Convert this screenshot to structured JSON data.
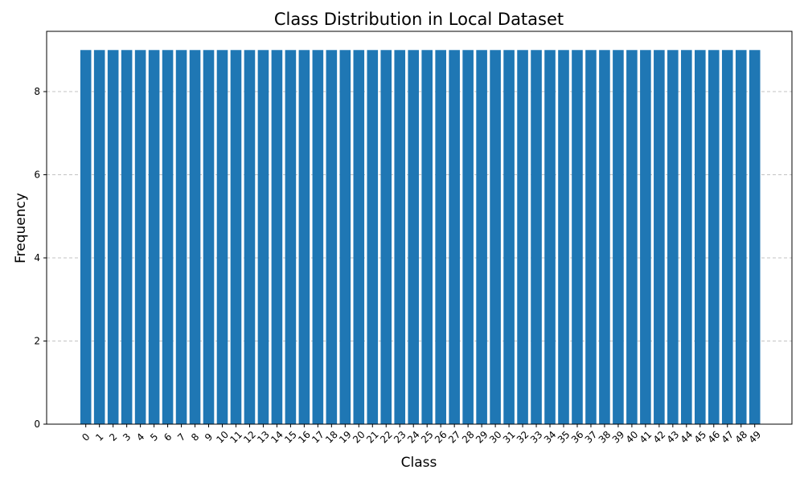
{
  "chart_data": {
    "type": "bar",
    "title": "Class Distribution in Local Dataset",
    "xlabel": "Class",
    "ylabel": "Frequency",
    "categories": [
      "0",
      "1",
      "2",
      "3",
      "4",
      "5",
      "6",
      "7",
      "8",
      "9",
      "10",
      "11",
      "12",
      "13",
      "14",
      "15",
      "16",
      "17",
      "18",
      "19",
      "20",
      "21",
      "22",
      "23",
      "24",
      "25",
      "26",
      "27",
      "28",
      "29",
      "30",
      "31",
      "32",
      "33",
      "34",
      "35",
      "36",
      "37",
      "38",
      "39",
      "40",
      "41",
      "42",
      "43",
      "44",
      "45",
      "46",
      "47",
      "48",
      "49"
    ],
    "values": [
      9,
      9,
      9,
      9,
      9,
      9,
      9,
      9,
      9,
      9,
      9,
      9,
      9,
      9,
      9,
      9,
      9,
      9,
      9,
      9,
      9,
      9,
      9,
      9,
      9,
      9,
      9,
      9,
      9,
      9,
      9,
      9,
      9,
      9,
      9,
      9,
      9,
      9,
      9,
      9,
      9,
      9,
      9,
      9,
      9,
      9,
      9,
      9,
      9,
      9
    ],
    "ylim": [
      0,
      9.45
    ],
    "yticks": [
      0,
      2,
      4,
      6,
      8
    ],
    "grid": "y-axis dashed",
    "xtick_rotation": 45,
    "bar_color": "#1f77b4",
    "grid_color": "#b0b0b0"
  }
}
